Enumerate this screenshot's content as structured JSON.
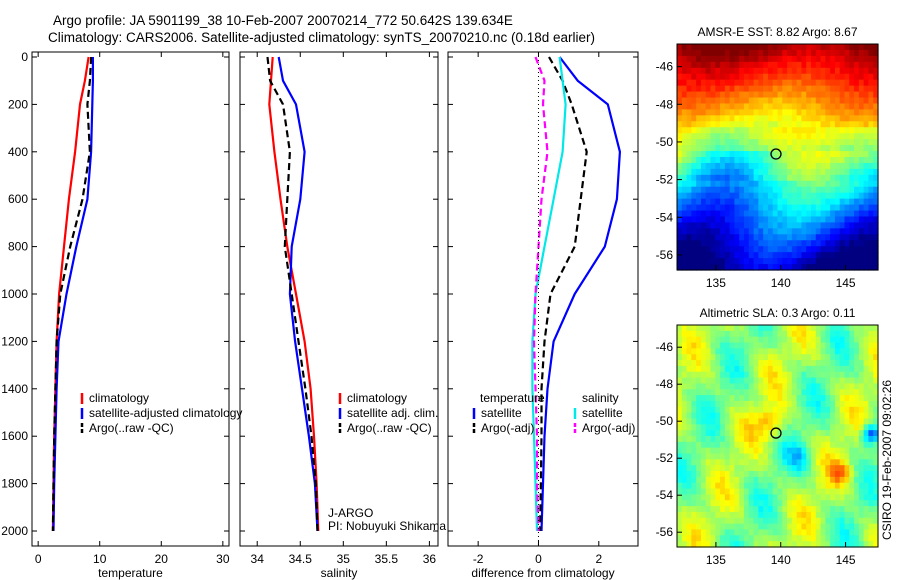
{
  "header": {
    "line1": "Argo profile: JA 5901199_38 10-Feb-2007 20070214_772 50.642S 139.634E",
    "line2": "Climatology: CARS2006. Satellite-adjusted climatology: synTS_20070210.nc (0.18d earlier)"
  },
  "credit": "CSIRO 19-Feb-2007 09:02:26",
  "colors": {
    "red": "#ff0000",
    "blue": "#0000ff",
    "black": "#000000",
    "cyan": "#00e8e8",
    "magenta": "#ff00ff"
  },
  "chart_data": [
    {
      "type": "line",
      "xlabel": "temperature",
      "ylabel": "",
      "xlim": [
        -1,
        31
      ],
      "ylim": [
        0,
        2050
      ],
      "y_reversed": true,
      "xticks": [
        0,
        10,
        20,
        30
      ],
      "yticks": [
        0,
        200,
        400,
        600,
        800,
        1000,
        1200,
        1400,
        1600,
        1800,
        2000
      ],
      "legend": {
        "position": "lower-right",
        "entries": [
          "climatology",
          "satellite-adjusted climatology",
          "Argo(..raw -QC)"
        ]
      },
      "series": [
        {
          "name": "climatology",
          "color": "red",
          "dash": "solid",
          "x": [
            8.2,
            7.6,
            6.8,
            6.0,
            5.0,
            4.2,
            3.4,
            3.0,
            2.8,
            2.6,
            2.5,
            2.4
          ],
          "y": [
            0,
            100,
            200,
            400,
            600,
            800,
            1000,
            1200,
            1400,
            1600,
            1800,
            2000
          ]
        },
        {
          "name": "satellite-adjusted climatology",
          "color": "blue",
          "dash": "solid",
          "x": [
            8.9,
            8.9,
            8.8,
            8.6,
            8.0,
            6.2,
            4.6,
            3.3,
            3.0,
            2.8,
            2.6,
            2.5
          ],
          "y": [
            0,
            100,
            200,
            400,
            600,
            800,
            1000,
            1200,
            1400,
            1600,
            1800,
            2000
          ]
        },
        {
          "name": "Argo(..raw -QC)",
          "color": "black",
          "dash": "dashed",
          "x": [
            8.6,
            8.4,
            8.0,
            8.4,
            7.2,
            5.2,
            3.6,
            3.0,
            2.8,
            2.6,
            2.5,
            2.4
          ],
          "y": [
            0,
            100,
            200,
            400,
            600,
            800,
            1000,
            1200,
            1400,
            1600,
            1800,
            2000
          ]
        }
      ]
    },
    {
      "type": "line",
      "xlabel": "salinity",
      "ylabel": "",
      "xlim": [
        33.8,
        36.1
      ],
      "ylim": [
        0,
        2050
      ],
      "y_reversed": true,
      "xticks": [
        34,
        34.5,
        35,
        35.5,
        36
      ],
      "legend": {
        "position": "lower-right",
        "entries": [
          "climatology",
          "satellite adj. clim.",
          "Argo(..raw -QC)"
        ]
      },
      "annotations": [
        "J-ARGO",
        "PI: Nobuyuki Shikama"
      ],
      "series": [
        {
          "name": "climatology",
          "color": "red",
          "dash": "solid",
          "x": [
            34.18,
            34.16,
            34.14,
            34.2,
            34.27,
            34.35,
            34.45,
            34.55,
            34.62,
            34.66,
            34.69,
            34.71
          ],
          "y": [
            0,
            100,
            200,
            400,
            600,
            800,
            1000,
            1200,
            1400,
            1600,
            1800,
            2000
          ]
        },
        {
          "name": "satellite adj. clim.",
          "color": "blue",
          "dash": "solid",
          "x": [
            34.25,
            34.3,
            34.45,
            34.55,
            34.5,
            34.4,
            34.38,
            34.44,
            34.52,
            34.6,
            34.67,
            34.7
          ],
          "y": [
            0,
            100,
            200,
            400,
            600,
            800,
            1000,
            1200,
            1400,
            1600,
            1800,
            2000
          ]
        },
        {
          "name": "Argo(..raw -QC)",
          "color": "black",
          "dash": "dashed",
          "x": [
            34.12,
            34.15,
            34.3,
            34.38,
            34.35,
            34.32,
            34.4,
            34.48,
            34.56,
            34.63,
            34.68,
            34.7
          ],
          "y": [
            0,
            100,
            200,
            400,
            600,
            800,
            1000,
            1200,
            1400,
            1600,
            1800,
            2000
          ]
        }
      ]
    },
    {
      "type": "line",
      "xlabel": "difference from climatology",
      "ylabel": "",
      "xlim": [
        -3,
        3.3
      ],
      "ylim": [
        0,
        2050
      ],
      "y_reversed": true,
      "xticks": [
        -2,
        0,
        2
      ],
      "legend": {
        "position": "lower-right",
        "groups": [
          {
            "title": "temperature",
            "entries": [
              "satellite",
              "Argo(-adj)"
            ]
          },
          {
            "title": "salinity",
            "entries": [
              "satellite",
              "Argo(-adj)"
            ]
          }
        ]
      },
      "series": [
        {
          "name": "temperature satellite",
          "color": "blue",
          "dash": "solid",
          "x": [
            0.7,
            1.3,
            2.3,
            2.7,
            2.6,
            2.2,
            1.2,
            0.5,
            0.3,
            0.2,
            0.15,
            0.1
          ],
          "y": [
            0,
            100,
            200,
            400,
            600,
            800,
            1000,
            1200,
            1400,
            1600,
            1800,
            2000
          ]
        },
        {
          "name": "temperature Argo(-adj)",
          "color": "black",
          "dash": "dashed",
          "x": [
            0.35,
            0.8,
            1.1,
            1.6,
            1.4,
            1.2,
            0.4,
            0.2,
            0.1,
            0.1,
            0.08,
            0.05
          ],
          "y": [
            0,
            100,
            200,
            400,
            600,
            800,
            1000,
            1200,
            1400,
            1600,
            1800,
            2000
          ]
        },
        {
          "name": "salinity satellite",
          "color": "cyan",
          "dash": "solid",
          "x": [
            0.7,
            0.8,
            0.9,
            0.8,
            0.5,
            0.2,
            -0.1,
            -0.2,
            -0.2,
            -0.15,
            -0.1,
            -0.05
          ],
          "y": [
            0,
            100,
            200,
            400,
            600,
            800,
            1000,
            1200,
            1400,
            1600,
            1800,
            2000
          ]
        },
        {
          "name": "salinity Argo(-adj)",
          "color": "magenta",
          "dash": "dashed",
          "x": [
            -0.1,
            0.2,
            0.15,
            0.3,
            0.1,
            0.0,
            -0.1,
            -0.15,
            -0.1,
            -0.05,
            -0.05,
            0.0
          ],
          "y": [
            0,
            100,
            200,
            400,
            600,
            800,
            1000,
            1200,
            1400,
            1600,
            1800,
            2000
          ]
        }
      ]
    },
    {
      "type": "heatmap",
      "title": "AMSR-E SST: 8.82 Argo: 8.67",
      "xlim": [
        132,
        147.5
      ],
      "ylim": [
        -56.8,
        -44.8
      ],
      "xticks": [
        135,
        140,
        145
      ],
      "yticks": [
        -46,
        -48,
        -50,
        -52,
        -54,
        -56
      ],
      "marker": {
        "lon": 139.634,
        "lat": -50.642
      },
      "colormap": "jet, warm north to cold south"
    },
    {
      "type": "heatmap",
      "title": "Altimetric SLA: 0.3 Argo: 0.11",
      "xlim": [
        132,
        147.5
      ],
      "ylim": [
        -56.8,
        -44.8
      ],
      "xticks": [
        135,
        140,
        145
      ],
      "yticks": [
        -46,
        -48,
        -50,
        -52,
        -54,
        -56
      ],
      "marker": {
        "lon": 139.634,
        "lat": -50.642
      },
      "colormap": "jet, mostly green with yellow/cyan anomalies"
    }
  ]
}
